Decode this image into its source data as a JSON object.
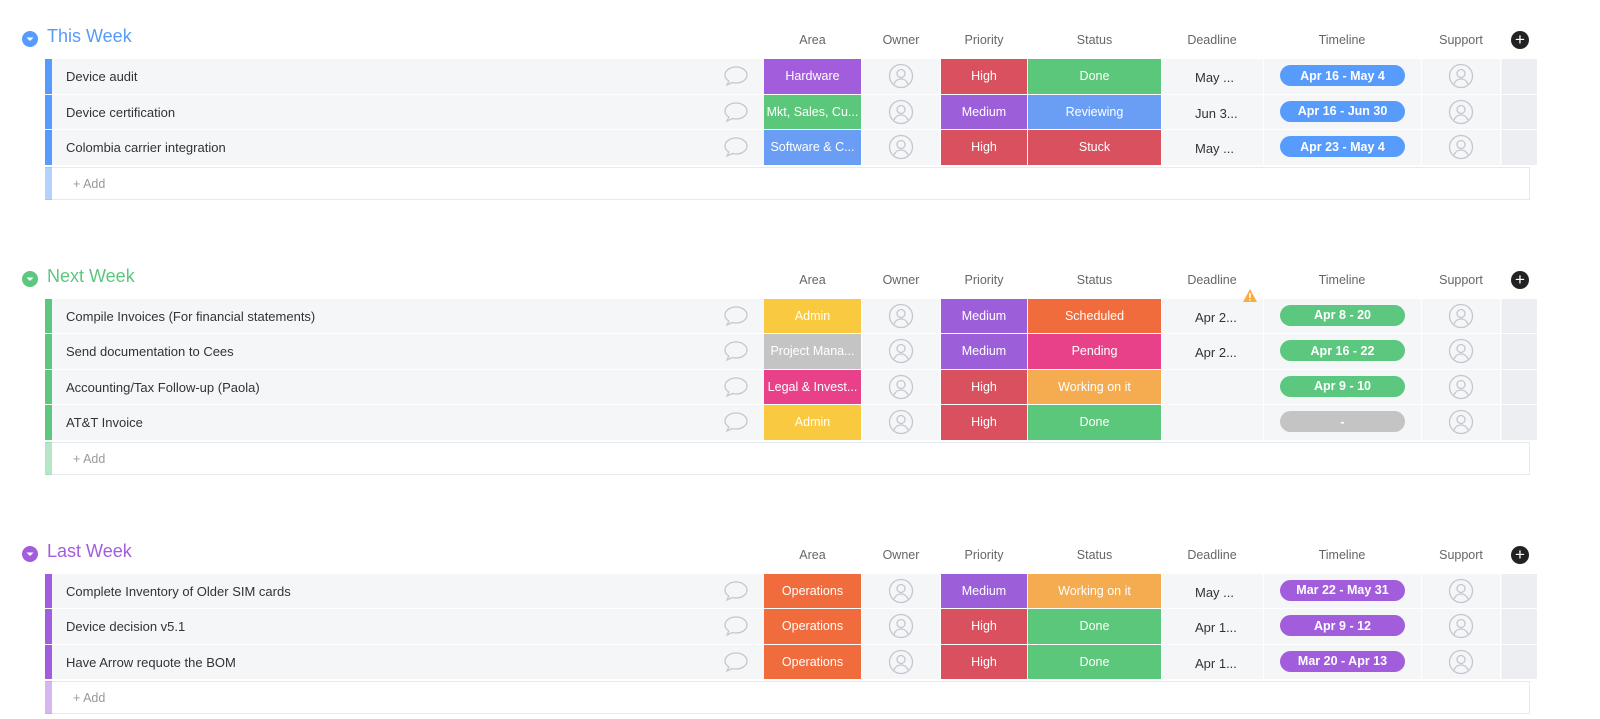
{
  "groups": [
    {
      "title": "This Week",
      "color": "#579bfc",
      "columns": [
        "Area",
        "Owner",
        "Priority",
        "Status",
        "Deadline",
        "Timeline",
        "Support"
      ],
      "add": "+ Add",
      "rows": [
        {
          "name": "Device audit",
          "area": {
            "label": "Hardware",
            "color": "#a25ddc"
          },
          "priority": {
            "label": "High",
            "color": "#d9515e"
          },
          "status": {
            "label": "Done",
            "color": "#5bc77a"
          },
          "deadline": "May ...",
          "timeline": "Apr 16 - May 4"
        },
        {
          "name": "Device certification",
          "area": {
            "label": "Mkt, Sales, Cu...",
            "color": "#5bc77a"
          },
          "priority": {
            "label": "Medium",
            "color": "#9c5fd9"
          },
          "status": {
            "label": "Reviewing",
            "color": "#6a9ef5"
          },
          "deadline": "Jun 3...",
          "timeline": "Apr 16 - Jun 30"
        },
        {
          "name": "Colombia carrier integration",
          "area": {
            "label": "Software & C...",
            "color": "#6a9ef5"
          },
          "priority": {
            "label": "High",
            "color": "#d9515e"
          },
          "status": {
            "label": "Stuck",
            "color": "#d9515e"
          },
          "deadline": "May ...",
          "timeline": "Apr 23 - May 4"
        }
      ]
    },
    {
      "title": "Next Week",
      "color": "#5cc77f",
      "columns": [
        "Area",
        "Owner",
        "Priority",
        "Status",
        "Deadline",
        "Timeline",
        "Support"
      ],
      "add": "+ Add",
      "rows": [
        {
          "name": "Compile Invoices (For financial statements)",
          "area": {
            "label": "Admin",
            "color": "#f9c940"
          },
          "priority": {
            "label": "Medium",
            "color": "#9c5fd9"
          },
          "status": {
            "label": "Scheduled",
            "color": "#f06c3c"
          },
          "deadline": "Apr 2...",
          "timeline": "Apr 8 - 20"
        },
        {
          "name": "Send documentation to Cees",
          "area": {
            "label": "Project Mana...",
            "color": "#c4c4c4"
          },
          "priority": {
            "label": "Medium",
            "color": "#9c5fd9"
          },
          "status": {
            "label": "Pending",
            "color": "#e8418a"
          },
          "deadline": "Apr 2...",
          "timeline": "Apr 16 - 22"
        },
        {
          "name": "Accounting/Tax Follow-up (Paola)",
          "area": {
            "label": "Legal & Invest...",
            "color": "#e8418a"
          },
          "priority": {
            "label": "High",
            "color": "#d9515e"
          },
          "status": {
            "label": "Working on it",
            "color": "#f5ab4f"
          },
          "timeline": "Apr 9 - 10"
        },
        {
          "name": "AT&T Invoice",
          "area": {
            "label": "Admin",
            "color": "#f9c940"
          },
          "priority": {
            "label": "High",
            "color": "#d9515e"
          },
          "status": {
            "label": "Done",
            "color": "#5bc77a"
          },
          "timeline": "-",
          "timeline_color": "#c4c4c4"
        }
      ]
    },
    {
      "title": "Last Week",
      "color": "#a25ddc",
      "columns": [
        "Area",
        "Owner",
        "Priority",
        "Status",
        "Deadline",
        "Timeline",
        "Support"
      ],
      "add": "+ Add",
      "rows": [
        {
          "name": "Complete Inventory of Older SIM cards",
          "area": {
            "label": "Operations",
            "color": "#f06c3c"
          },
          "priority": {
            "label": "Medium",
            "color": "#9c5fd9"
          },
          "status": {
            "label": "Working on it",
            "color": "#f5ab4f"
          },
          "deadline": "May ...",
          "timeline": "Mar 22 - May 31"
        },
        {
          "name": "Device decision v5.1",
          "area": {
            "label": "Operations",
            "color": "#f06c3c"
          },
          "priority": {
            "label": "High",
            "color": "#d9515e"
          },
          "status": {
            "label": "Done",
            "color": "#5bc77a"
          },
          "deadline": "Apr 1...",
          "timeline": "Apr 9 - 12"
        },
        {
          "name": "Have Arrow requote the BOM",
          "area": {
            "label": "Operations",
            "color": "#f06c3c"
          },
          "priority": {
            "label": "High",
            "color": "#d9515e"
          },
          "status": {
            "label": "Done",
            "color": "#5bc77a"
          },
          "deadline": "Apr 1...",
          "timeline": "Mar 20 - Apr 13"
        }
      ]
    }
  ]
}
